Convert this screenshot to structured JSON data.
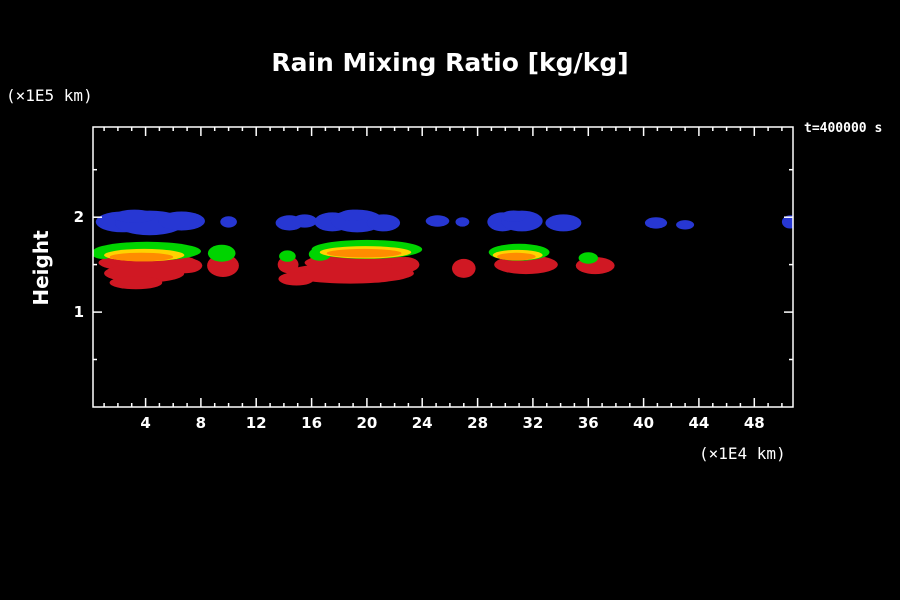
{
  "window": {
    "background": "#000000",
    "text_color": "#ffffff"
  },
  "chart_data": {
    "type": "filled_contour",
    "title": "Rain Mixing Ratio [kg/kg]",
    "ylabel": "Height",
    "y_axis_unit": "(×1E5 km)",
    "x_axis_unit": "(×1E4 km)",
    "annotation": "t=400000 s",
    "xlim": [
      0.2,
      50.8
    ],
    "ylim": [
      0,
      2.95
    ],
    "x_ticks": [
      4,
      8,
      12,
      16,
      20,
      24,
      28,
      32,
      36,
      40,
      44,
      48
    ],
    "y_ticks": [
      1,
      2
    ],
    "x_minor_step": 1,
    "y_minor_step": 0.5,
    "grid": false,
    "legend": "none",
    "axis_color": "#ffffff",
    "levels": [
      {
        "name": "blue",
        "color": "#2737d3"
      },
      {
        "name": "green",
        "color": "#00d400"
      },
      {
        "name": "yellow",
        "color": "#ffd200"
      },
      {
        "name": "orange",
        "color": "#ff8c00"
      },
      {
        "name": "red",
        "color": "#d01823"
      }
    ],
    "draw_order": [
      "blue",
      "red",
      "green",
      "yellow",
      "orange"
    ],
    "ellipses": {
      "blue": [
        [
          2.3,
          1.95,
          1.9,
          0.11
        ],
        [
          4.3,
          1.94,
          2.5,
          0.13
        ],
        [
          6.6,
          1.96,
          1.7,
          0.1
        ],
        [
          3.2,
          2.01,
          1.5,
          0.07
        ],
        [
          10.0,
          1.95,
          0.6,
          0.06
        ],
        [
          14.4,
          1.94,
          1.0,
          0.08
        ],
        [
          15.5,
          1.96,
          0.9,
          0.07
        ],
        [
          17.5,
          1.95,
          1.3,
          0.1
        ],
        [
          19.3,
          1.96,
          1.9,
          0.12
        ],
        [
          21.2,
          1.94,
          1.2,
          0.09
        ],
        [
          19.0,
          2.02,
          1.0,
          0.06
        ],
        [
          25.1,
          1.96,
          0.85,
          0.06
        ],
        [
          26.9,
          1.95,
          0.5,
          0.05
        ],
        [
          29.8,
          1.95,
          1.1,
          0.1
        ],
        [
          31.2,
          1.96,
          1.5,
          0.11
        ],
        [
          30.6,
          2.01,
          0.9,
          0.06
        ],
        [
          34.2,
          1.94,
          1.3,
          0.09
        ],
        [
          40.9,
          1.94,
          0.8,
          0.06
        ],
        [
          43.0,
          1.92,
          0.65,
          0.05
        ],
        [
          50.6,
          1.95,
          0.6,
          0.07
        ]
      ],
      "red": [
        [
          4.2,
          1.52,
          3.6,
          0.1
        ],
        [
          3.9,
          1.41,
          2.9,
          0.1
        ],
        [
          3.3,
          1.31,
          1.9,
          0.07
        ],
        [
          6.9,
          1.49,
          1.2,
          0.08
        ],
        [
          9.6,
          1.49,
          1.15,
          0.12
        ],
        [
          14.3,
          1.5,
          0.75,
          0.09
        ],
        [
          19.4,
          1.52,
          3.9,
          0.1
        ],
        [
          18.8,
          1.41,
          4.6,
          0.11
        ],
        [
          14.9,
          1.35,
          1.3,
          0.07
        ],
        [
          22.8,
          1.5,
          1.0,
          0.08
        ],
        [
          27.0,
          1.46,
          0.85,
          0.1
        ],
        [
          31.5,
          1.5,
          2.3,
          0.1
        ],
        [
          36.5,
          1.49,
          1.4,
          0.09
        ]
      ],
      "green": [
        [
          4.1,
          1.64,
          3.9,
          0.1
        ],
        [
          0.9,
          1.62,
          0.8,
          0.06
        ],
        [
          9.5,
          1.62,
          1.0,
          0.09
        ],
        [
          14.25,
          1.59,
          0.6,
          0.06
        ],
        [
          20.0,
          1.66,
          4.0,
          0.1
        ],
        [
          16.6,
          1.61,
          0.8,
          0.07
        ],
        [
          31.0,
          1.63,
          2.2,
          0.09
        ],
        [
          36.0,
          1.57,
          0.7,
          0.06
        ]
      ],
      "yellow": [
        [
          3.9,
          1.6,
          2.9,
          0.065
        ],
        [
          19.9,
          1.63,
          3.3,
          0.065
        ],
        [
          30.9,
          1.6,
          1.8,
          0.055
        ]
      ],
      "orange": [
        [
          3.7,
          1.58,
          2.3,
          0.045
        ],
        [
          19.8,
          1.62,
          2.7,
          0.045
        ],
        [
          30.8,
          1.585,
          1.4,
          0.04
        ]
      ]
    }
  }
}
